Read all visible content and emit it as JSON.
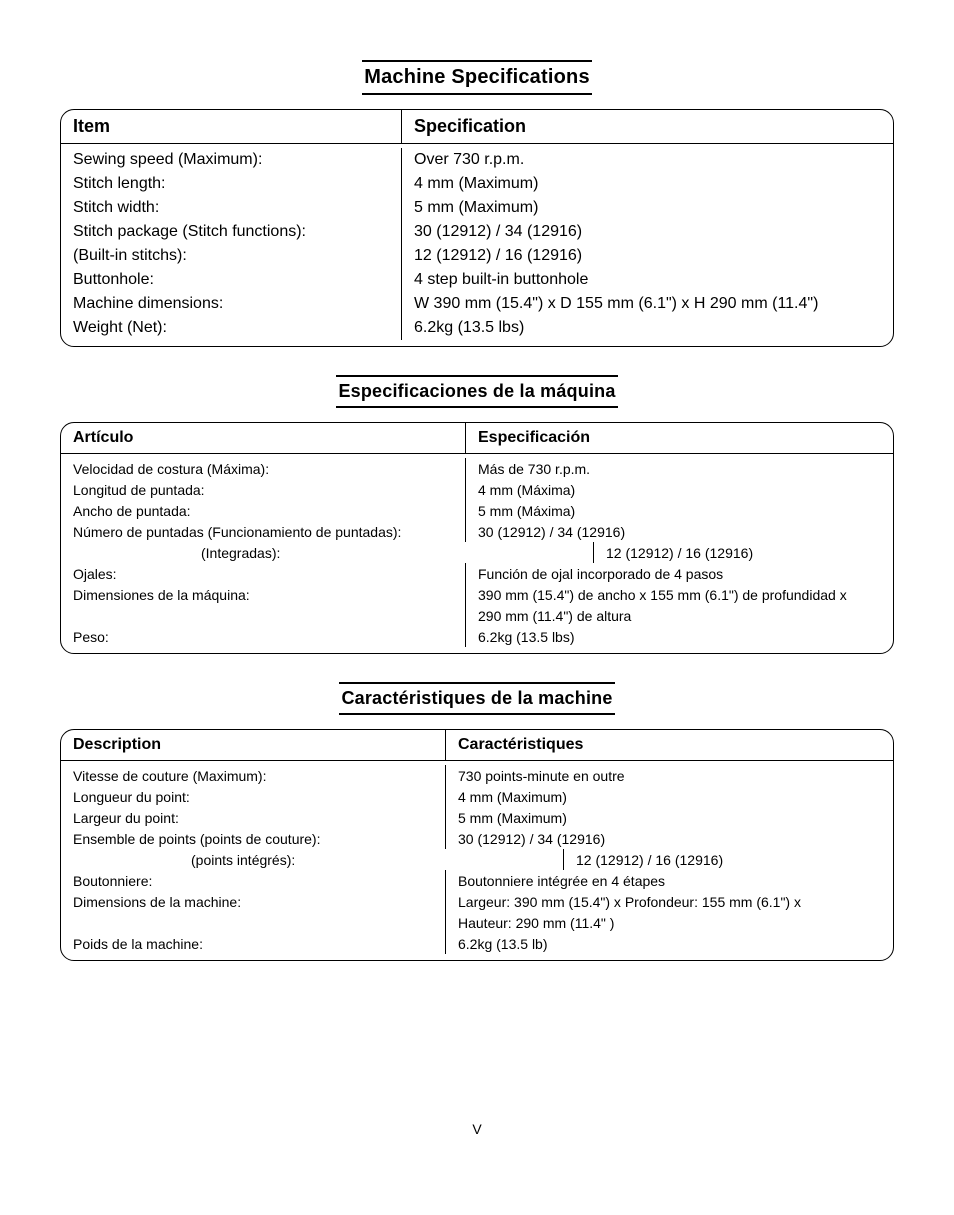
{
  "page_number": "V",
  "sections": [
    {
      "title": "Machine Specifications",
      "head_left": "Item",
      "head_right": "Specification",
      "rows": [
        {
          "l": "Sewing speed (Maximum):",
          "r": "Over 730 r.p.m."
        },
        {
          "l": "Stitch length:",
          "r": "4 mm (Maximum)"
        },
        {
          "l": "Stitch width:",
          "r": "5 mm (Maximum)"
        },
        {
          "l": "Stitch package (Stitch functions):",
          "r": "30 (12912) / 34 (12916)"
        },
        {
          "l": "(Built-in stitchs):",
          "r": "12 (12912) / 16 (12916)",
          "indent": true
        },
        {
          "l": "Buttonhole:",
          "r": "4 step built-in buttonhole"
        },
        {
          "l": "Machine dimensions:",
          "r": "W 390 mm (15.4\") x D 155 mm (6.1\") x H 290 mm (11.4\")"
        },
        {
          "l": "Weight (Net):",
          "r": "6.2kg (13.5 lbs)"
        }
      ]
    },
    {
      "title": "Especificaciones de la máquina",
      "head_left": "Artículo",
      "head_right": "Especificación",
      "rows": [
        {
          "l": "Velocidad de costura (Máxima):",
          "r": "Más de 730 r.p.m."
        },
        {
          "l": "Longitud de puntada:",
          "r": "4 mm (Máxima)"
        },
        {
          "l": "Ancho de puntada:",
          "r": "5 mm (Máxima)"
        },
        {
          "l": "Número de puntadas (Funcionamiento de puntadas):",
          "r": "30 (12912) / 34 (12916)"
        },
        {
          "l": "(Integradas):",
          "r": "12 (12912) / 16 (12916)",
          "indent": true
        },
        {
          "l": "Ojales:",
          "r": "Función de ojal incorporado de 4 pasos"
        },
        {
          "l": "Dimensiones de la máquina:",
          "r": "390 mm (15.4\") de ancho x 155 mm (6.1\") de profundidad x"
        },
        {
          "l": "",
          "r": "290 mm (11.4\") de altura"
        },
        {
          "l": "Peso:",
          "r": "6.2kg (13.5 lbs)"
        }
      ]
    },
    {
      "title": "Caractéristiques de la machine",
      "head_left": "Description",
      "head_right": "Caractéristiques",
      "rows": [
        {
          "l": "Vitesse de couture (Maximum):",
          "r": "730 points-minute en outre"
        },
        {
          "l": "Longueur du point:",
          "r": "4 mm (Maximum)"
        },
        {
          "l": "Largeur du point:",
          "r": "5 mm (Maximum)"
        },
        {
          "l": "Ensemble de points (points de couture):",
          "r": "30 (12912) / 34 (12916)"
        },
        {
          "l": "(points intégrés):",
          "r": "12 (12912) / 16 (12916)",
          "indent": true
        },
        {
          "l": "Boutonniere:",
          "r": "Boutonniere intégrée en 4 étapes"
        },
        {
          "l": "Dimensions de la machine:",
          "r": "Largeur: 390 mm (15.4\") x Profondeur: 155 mm (6.1\") x"
        },
        {
          "l": "",
          "r": "Hauteur: 290 mm (11.4\" )"
        },
        {
          "l": "Poids de la machine:",
          "r": "6.2kg (13.5 lb)"
        }
      ]
    }
  ]
}
